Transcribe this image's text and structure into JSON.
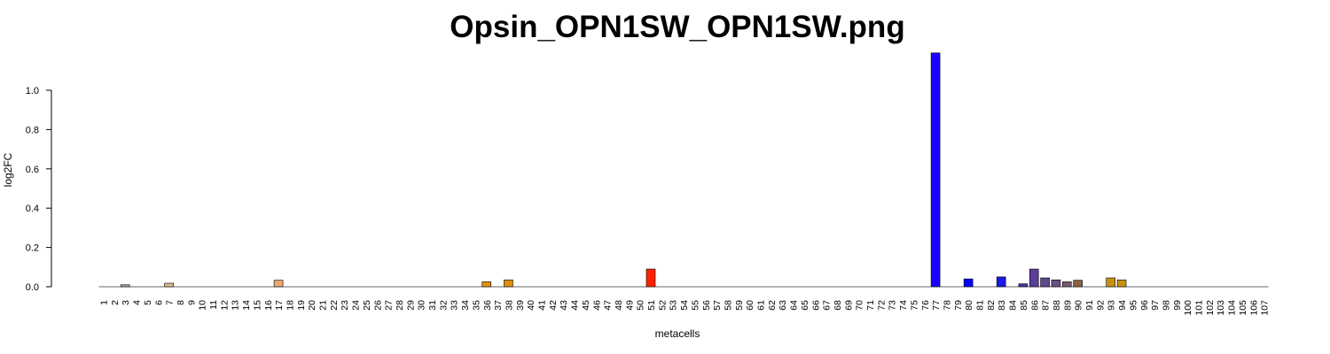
{
  "chart_data": {
    "type": "bar",
    "title": "Opsin_OPN1SW_OPN1SW.png",
    "xlabel": "metacells",
    "ylabel": "log2FC",
    "yticks": [
      "0.0",
      "0.2",
      "0.4",
      "0.6",
      "0.8",
      "1.0"
    ],
    "ylim": [
      0,
      1.19
    ],
    "grid": false,
    "legend": "none",
    "categories": [
      "1",
      "2",
      "3",
      "4",
      "5",
      "6",
      "7",
      "8",
      "9",
      "10",
      "11",
      "12",
      "13",
      "14",
      "15",
      "16",
      "17",
      "18",
      "19",
      "20",
      "21",
      "22",
      "23",
      "24",
      "25",
      "26",
      "27",
      "28",
      "29",
      "30",
      "31",
      "32",
      "33",
      "34",
      "35",
      "36",
      "37",
      "38",
      "39",
      "40",
      "41",
      "42",
      "43",
      "44",
      "45",
      "46",
      "47",
      "48",
      "49",
      "50",
      "51",
      "52",
      "53",
      "54",
      "55",
      "56",
      "57",
      "58",
      "59",
      "60",
      "61",
      "62",
      "63",
      "64",
      "65",
      "66",
      "67",
      "68",
      "69",
      "70",
      "71",
      "72",
      "73",
      "74",
      "75",
      "76",
      "77",
      "78",
      "79",
      "80",
      "81",
      "82",
      "83",
      "84",
      "85",
      "86",
      "87",
      "88",
      "89",
      "90",
      "91",
      "92",
      "93",
      "94",
      "95",
      "96",
      "97",
      "98",
      "99",
      "100",
      "101",
      "102",
      "103",
      "104",
      "105",
      "106",
      "107"
    ],
    "values": [
      0,
      0,
      0.01,
      0,
      0,
      0,
      0.018,
      0,
      0,
      0,
      0,
      0,
      0,
      0,
      0,
      0,
      0.033,
      0,
      0,
      0,
      0,
      0,
      0,
      0,
      0,
      0,
      0,
      0,
      0,
      0,
      0,
      0,
      0,
      0,
      0,
      0.025,
      0,
      0.035,
      0,
      0,
      0,
      0,
      0,
      0,
      0,
      0,
      0,
      0,
      0,
      0,
      0.09,
      0,
      0,
      0,
      0,
      0,
      0,
      0,
      0,
      0,
      0,
      0,
      0,
      0,
      0,
      0,
      0,
      0,
      0,
      0,
      0,
      0,
      0,
      0,
      0,
      0,
      1.19,
      0,
      0,
      0.04,
      0,
      0,
      0.05,
      0,
      0.015,
      0.09,
      0.045,
      0.035,
      0.025,
      0.033,
      0,
      0,
      0.045,
      0.035,
      0,
      0,
      0,
      0,
      0,
      0,
      0,
      0,
      0,
      0,
      0,
      0,
      0
    ],
    "colors": {
      "3": "#a6a6a6",
      "7": "#d9b88c",
      "17": "#e8a870",
      "36": "#e0900a",
      "38": "#e0900a",
      "51": "#ff2200",
      "77": "#1a00ff",
      "80": "#0000ff",
      "83": "#1a1ae0",
      "85": "#4433aa",
      "86": "#5a3e9a",
      "87": "#5e4890",
      "88": "#6a5080",
      "89": "#7a5a70",
      "90": "#8a6040",
      "93": "#c89010",
      "94": "#c89010"
    },
    "default_color": "#bbbbbb",
    "bar_stroke": "#000000"
  }
}
